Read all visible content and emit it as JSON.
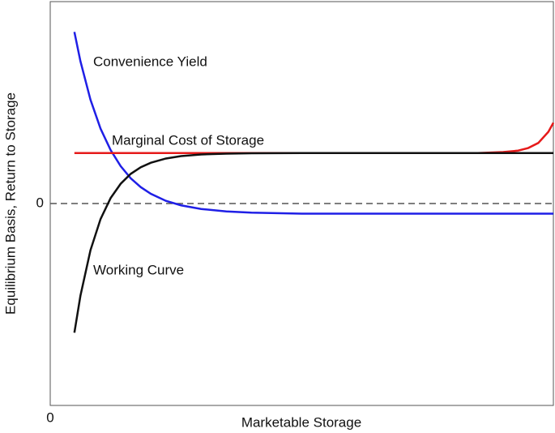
{
  "chart_data": {
    "type": "line",
    "xlabel": "Marketable Storage",
    "ylabel": "Equilibrium Basis, Return to Storage",
    "x": [
      4.8,
      6,
      8,
      10,
      12,
      14,
      16,
      18,
      20,
      23,
      26,
      30,
      35,
      40,
      50,
      60,
      70,
      80,
      85,
      90,
      93,
      95,
      97,
      99,
      100
    ],
    "series": [
      {
        "name": "Convenience Yield",
        "color": "#1f1fe6",
        "values": [
          8.5,
          7.05,
          5.14,
          3.71,
          2.65,
          1.85,
          1.25,
          0.81,
          0.48,
          0.13,
          -0.09,
          -0.27,
          -0.39,
          -0.45,
          -0.5,
          -0.5,
          -0.5,
          -0.5,
          -0.5,
          -0.5,
          -0.5,
          -0.5,
          -0.5,
          -0.5,
          -0.5
        ]
      },
      {
        "name": "Marginal Cost of Storage",
        "color": "#e61a1a",
        "values": [
          2.5,
          2.5,
          2.5,
          2.5,
          2.5,
          2.5,
          2.5,
          2.5,
          2.5,
          2.5,
          2.5,
          2.5,
          2.5,
          2.5,
          2.5,
          2.5,
          2.5,
          2.5,
          2.5,
          2.55,
          2.62,
          2.75,
          3.0,
          3.55,
          4.0
        ]
      },
      {
        "name": "Working Curve",
        "color": "#111111",
        "values": [
          -6.4,
          -4.57,
          -2.31,
          -0.77,
          0.27,
          0.98,
          1.47,
          1.8,
          2.02,
          2.23,
          2.35,
          2.43,
          2.47,
          2.49,
          2.5,
          2.5,
          2.5,
          2.5,
          2.5,
          2.5,
          2.5,
          2.5,
          2.5,
          2.5,
          2.5
        ]
      }
    ],
    "xlim": [
      0,
      100
    ],
    "ylim": [
      -10,
      10
    ],
    "xticks": [
      0
    ],
    "yticks": [
      0
    ]
  }
}
